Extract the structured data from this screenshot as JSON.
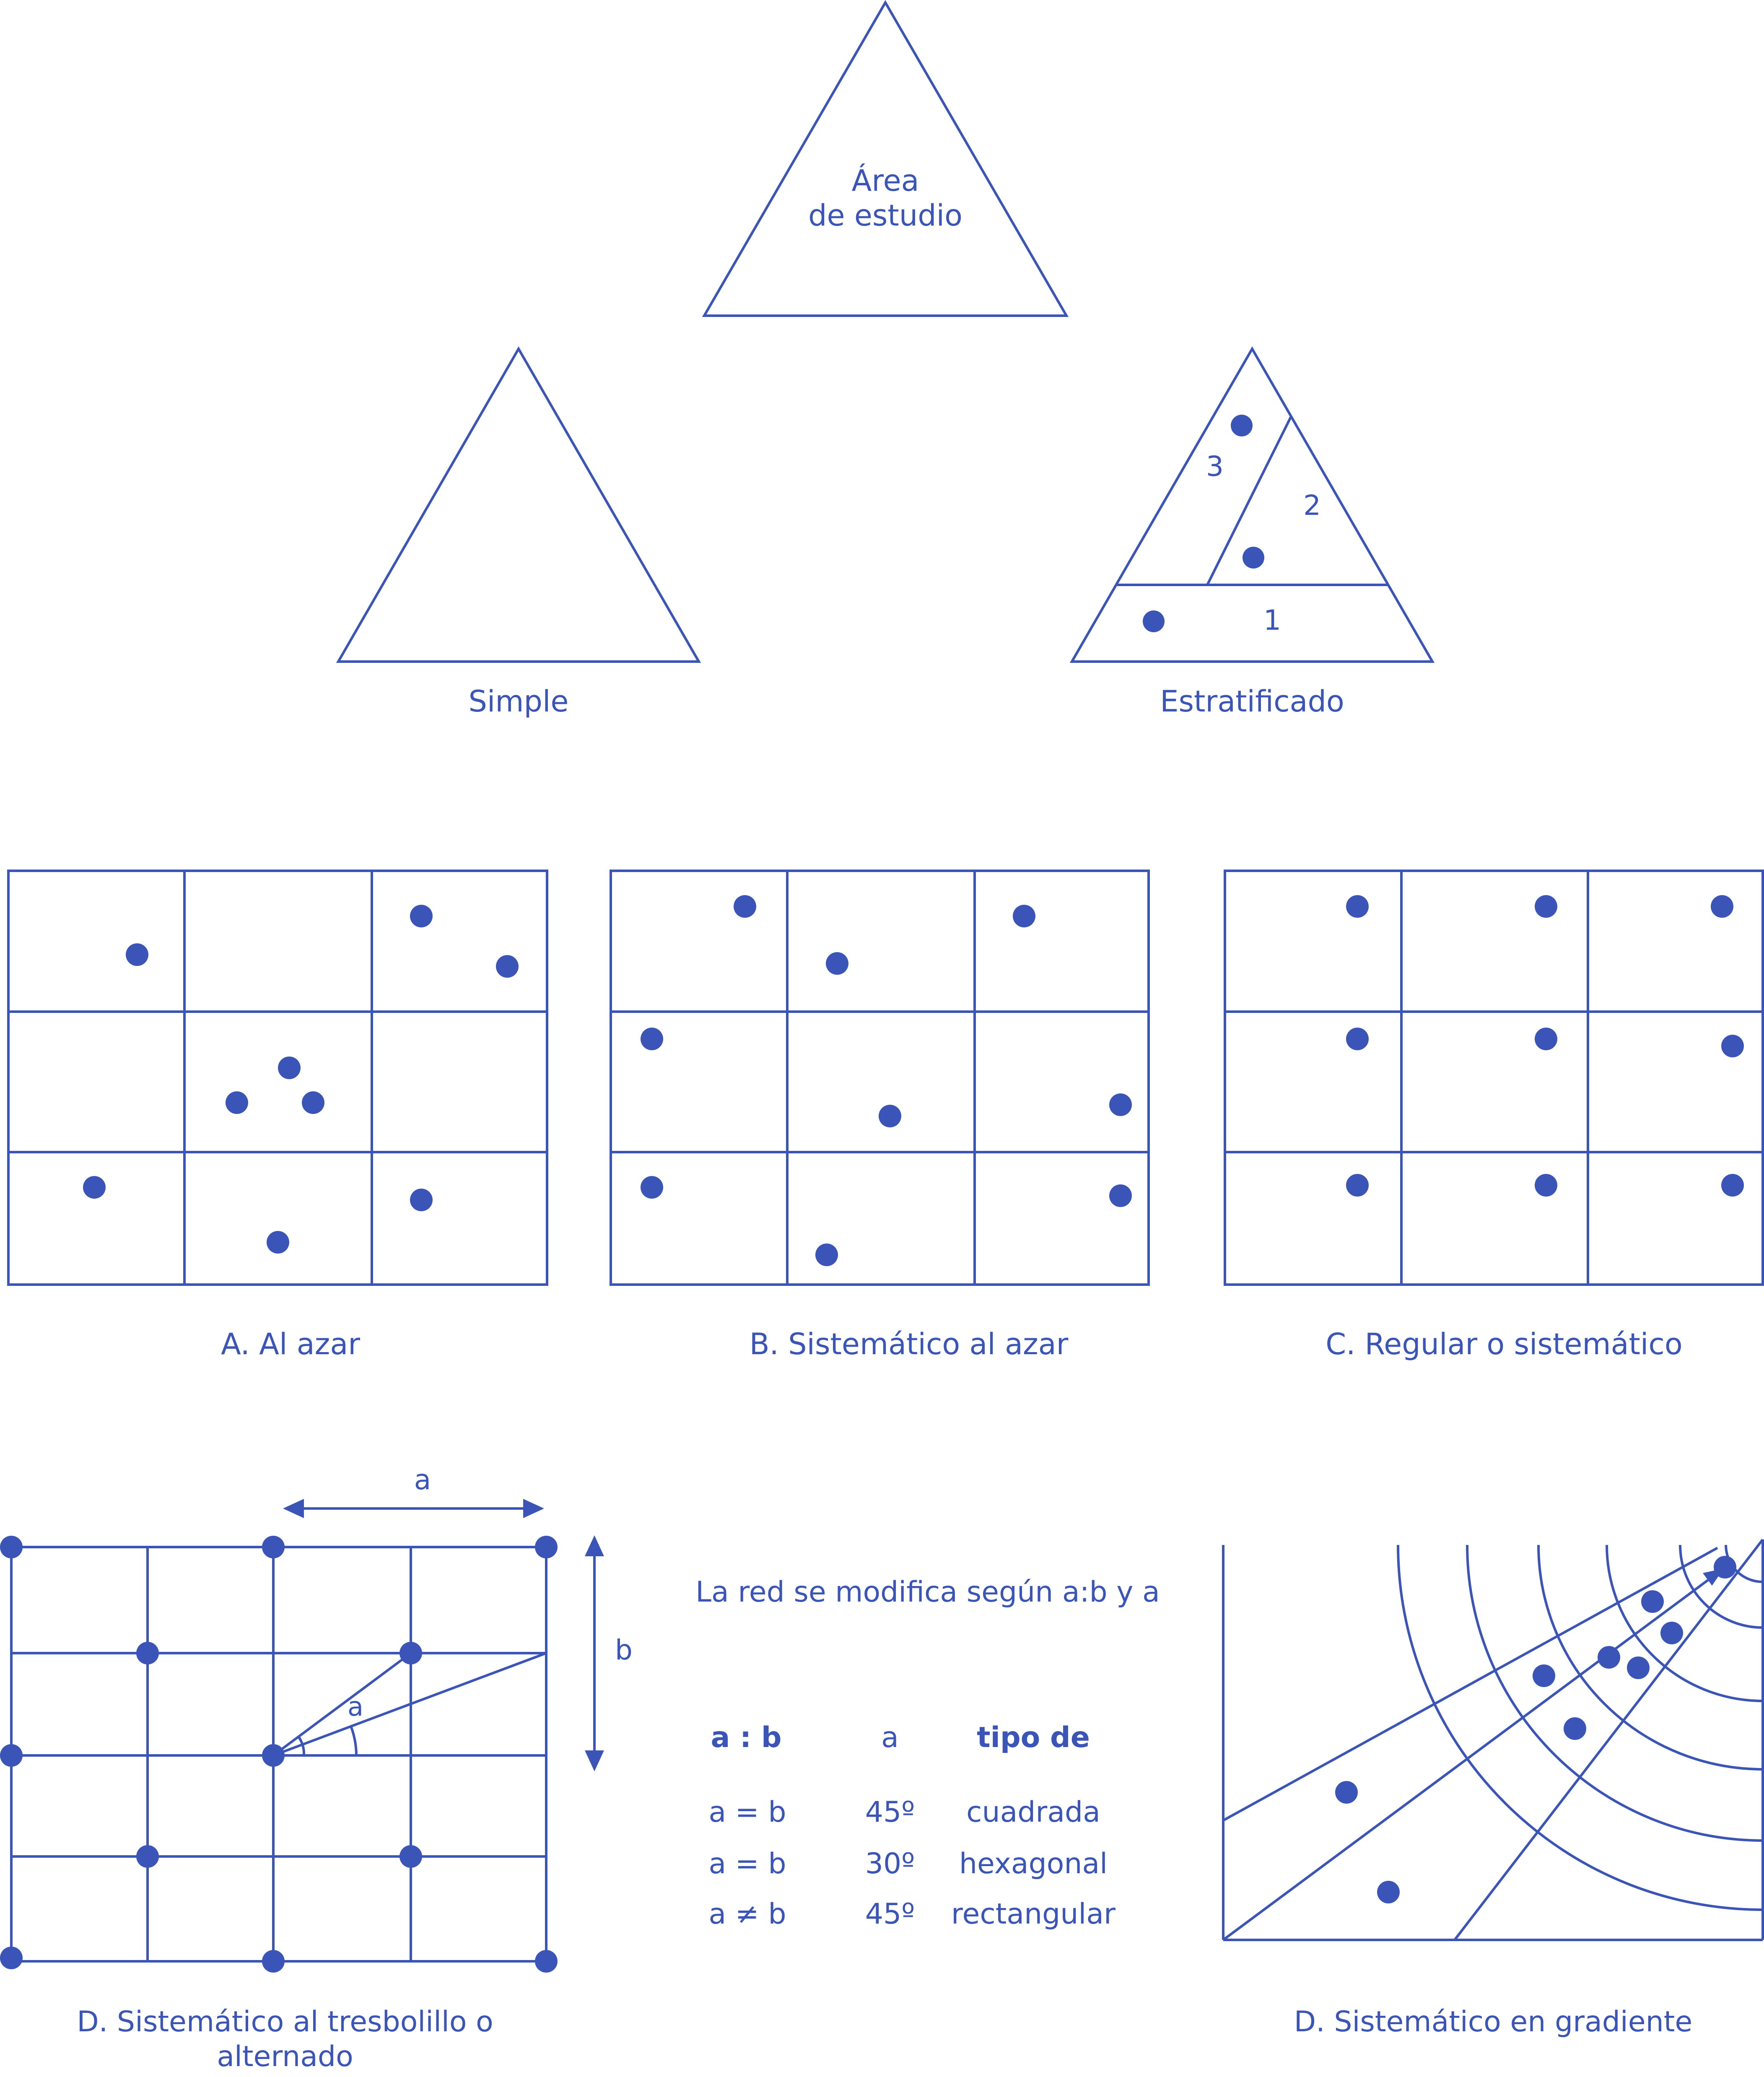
{
  "colors": {
    "primary": "#3a55b7",
    "background": "#ffffff"
  },
  "study_area": {
    "line1": "Área",
    "line2": "de estudio"
  },
  "sampling_simple": {
    "label": "Simple"
  },
  "sampling_stratified": {
    "label": "Estratificado",
    "strata": [
      "1",
      "2",
      "3"
    ]
  },
  "grid_random": {
    "label": "A. Al azar"
  },
  "grid_systematic_random": {
    "label": "B. Sistemático al azar"
  },
  "grid_regular": {
    "label": "C. Regular o sistemático"
  },
  "staggered": {
    "label_line1": "D. Sistemático al tresbolillo o",
    "label_line2": "alternado",
    "dim_a": "a",
    "dim_b": "b",
    "angle": "a"
  },
  "network_table": {
    "intro": "La red se modifica según a:b y a",
    "headers": [
      "a : b",
      "a",
      "tipo de"
    ],
    "rows": [
      [
        "a = b",
        "45º",
        "cuadrada"
      ],
      [
        "a = b",
        "30º",
        "hexagonal"
      ],
      [
        "a ≠ b",
        "45º",
        "rectangular"
      ]
    ]
  },
  "gradient": {
    "label": "D. Sistemático en gradiente"
  }
}
